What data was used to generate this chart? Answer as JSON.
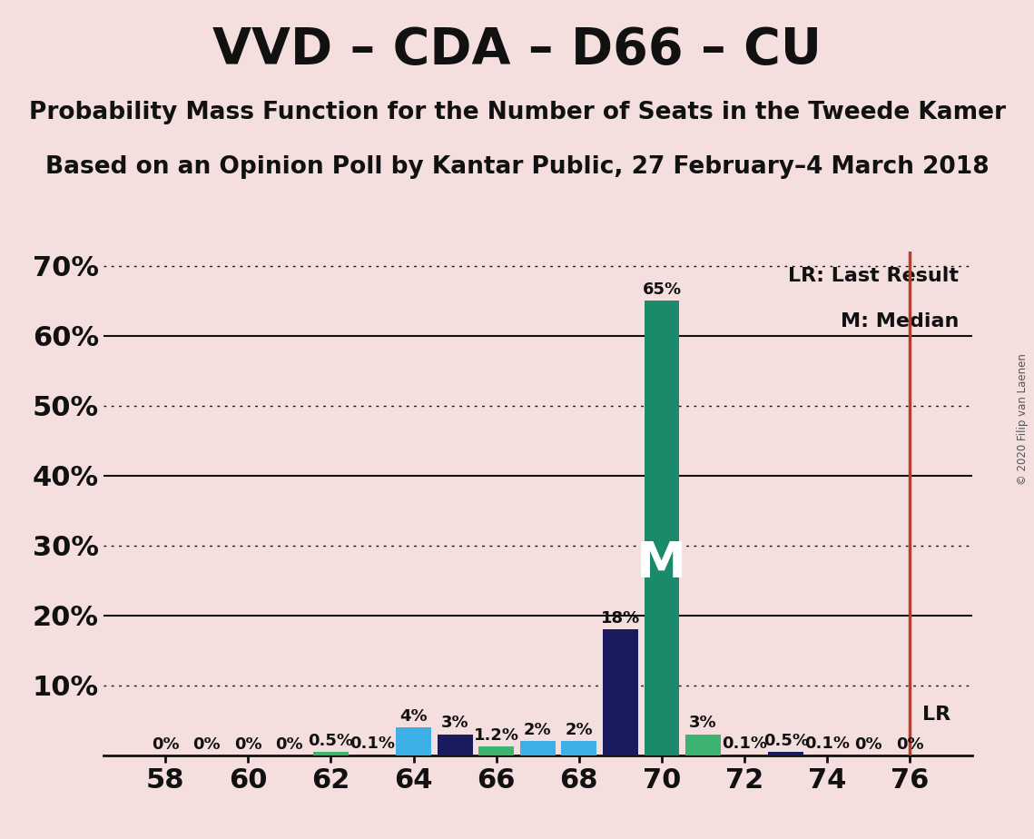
{
  "title": "VVD – CDA – D66 – CU",
  "subtitle1": "Probability Mass Function for the Number of Seats in the Tweede Kamer",
  "subtitle2": "Based on an Opinion Poll by Kantar Public, 27 February–4 March 2018",
  "copyright": "© 2020 Filip van Laenen",
  "background_color": "#f5dede",
  "seats": [
    58,
    59,
    60,
    61,
    62,
    63,
    64,
    65,
    66,
    67,
    68,
    69,
    70,
    71,
    72,
    73,
    74,
    75,
    76
  ],
  "probabilities": [
    0.0,
    0.0,
    0.0,
    0.0,
    0.005,
    0.001,
    0.04,
    0.03,
    0.012,
    0.02,
    0.02,
    0.18,
    0.65,
    0.03,
    0.001,
    0.005,
    0.001,
    0.0,
    0.0
  ],
  "bar_colors": [
    "#1a1a5e",
    "#1a1a5e",
    "#1a1a5e",
    "#1a1a5e",
    "#3cb371",
    "#1a1a5e",
    "#3eb0e8",
    "#1a1a5e",
    "#3cb371",
    "#3eb0e8",
    "#3eb0e8",
    "#1a1a5e",
    "#1b8a6b",
    "#3cb371",
    "#1a1a5e",
    "#1a1a5e",
    "#1a1a5e",
    "#1a1a5e",
    "#1a1a5e"
  ],
  "labels": [
    "0%",
    "0%",
    "0%",
    "0%",
    "0.5%",
    "0.1%",
    "4%",
    "3%",
    "1.2%",
    "2%",
    "2%",
    "18%",
    "65%",
    "3%",
    "0.1%",
    "0.5%",
    "0.1%",
    "0%",
    "0%"
  ],
  "median_seat": 70,
  "lr_seat": 76,
  "xlim": [
    56.5,
    77.5
  ],
  "ylim": [
    0.0,
    0.72
  ],
  "yticks": [
    0.0,
    0.1,
    0.2,
    0.3,
    0.4,
    0.5,
    0.6,
    0.7
  ],
  "ytick_labels": [
    "",
    "10%",
    "20%",
    "30%",
    "40%",
    "50%",
    "60%",
    "70%"
  ],
  "xticks": [
    58,
    60,
    62,
    64,
    66,
    68,
    70,
    72,
    74,
    76
  ],
  "dotted_lines": [
    0.1,
    0.3,
    0.5,
    0.7
  ],
  "solid_lines": [
    0.2,
    0.4,
    0.6
  ],
  "lr_line_color": "#c0392b",
  "median_label_color": "#ffffff",
  "median_label_fontsize": 40,
  "title_fontsize": 40,
  "subtitle_fontsize": 19,
  "label_fontsize": 13,
  "axis_fontsize": 22,
  "bar_width": 0.85
}
